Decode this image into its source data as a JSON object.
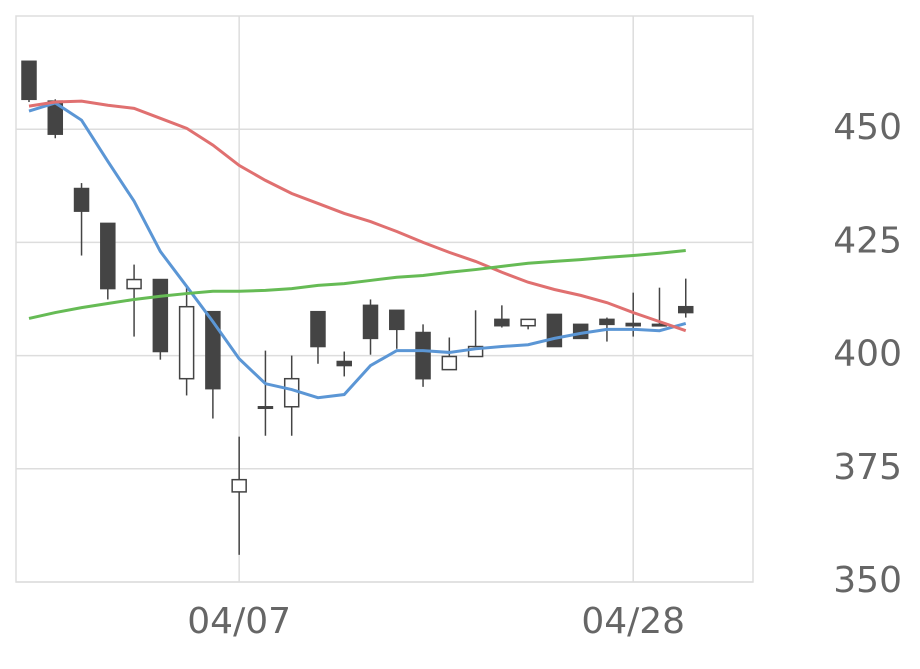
{
  "chart_data": {
    "type": "candlestick",
    "categories": [
      null,
      null,
      null,
      null,
      null,
      null,
      null,
      null,
      "04/07",
      null,
      null,
      null,
      null,
      null,
      null,
      null,
      null,
      null,
      null,
      null,
      null,
      null,
      null,
      "04/28",
      null,
      null
    ],
    "open": [
      465.0,
      456.2,
      436.9,
      429.2,
      414.8,
      416.8,
      394.9,
      409.7,
      369.9,
      388.7,
      388.7,
      409.7,
      398.7,
      411.1,
      410.0,
      405.1,
      396.9,
      399.8,
      408.0,
      406.6,
      409.1,
      406.9,
      408.0,
      407.1,
      406.9,
      410.8
    ],
    "high": [
      465.0,
      456.6,
      438.1,
      429.2,
      420.1,
      416.8,
      415.0,
      409.7,
      382.1,
      401.1,
      400.0,
      409.7,
      400.9,
      412.4,
      410.0,
      406.9,
      404.0,
      410.0,
      411.1,
      408.0,
      409.1,
      406.9,
      408.4,
      413.9,
      415.0,
      417.0
    ],
    "low": [
      456.0,
      448.0,
      422.1,
      412.4,
      404.2,
      399.1,
      391.2,
      386.1,
      356.0,
      382.3,
      382.3,
      398.2,
      395.4,
      400.2,
      401.5,
      393.1,
      396.9,
      399.8,
      406.2,
      405.8,
      402.0,
      403.8,
      403.1,
      404.2,
      406.9,
      408.4
    ],
    "close": [
      456.6,
      448.9,
      431.9,
      414.8,
      416.8,
      400.9,
      410.8,
      392.7,
      372.6,
      388.7,
      394.9,
      402.0,
      397.8,
      403.8,
      405.8,
      394.9,
      399.8,
      402.0,
      406.6,
      408.0,
      402.0,
      403.8,
      406.9,
      406.6,
      406.9,
      409.5
    ],
    "up_color": "#ffffff",
    "down_color": "#444444",
    "series": [
      {
        "color": "#5b96d5",
        "values": [
          454.0,
          455.8,
          452.0,
          442.9,
          434.1,
          423.0,
          415.3,
          407.5,
          399.3,
          393.8,
          392.5,
          390.7,
          391.4,
          397.8,
          401.1,
          401.1,
          400.7,
          401.5,
          402.0,
          402.4,
          403.8,
          404.9,
          405.8,
          405.8,
          405.5,
          407.1
        ]
      },
      {
        "color": "#e07070",
        "values": [
          455.1,
          456.0,
          456.2,
          455.3,
          454.6,
          452.4,
          450.2,
          446.5,
          442.0,
          438.7,
          435.8,
          433.6,
          431.4,
          429.6,
          427.4,
          425.0,
          422.8,
          420.8,
          418.4,
          416.2,
          414.6,
          413.3,
          411.7,
          409.5,
          407.5,
          405.5
        ]
      },
      {
        "color": "#66bb55",
        "values": [
          408.2,
          409.5,
          410.6,
          411.5,
          412.4,
          413.1,
          413.7,
          414.2,
          414.2,
          414.4,
          414.8,
          415.5,
          415.9,
          416.6,
          417.3,
          417.7,
          418.4,
          419.0,
          419.7,
          420.4,
          420.8,
          421.2,
          421.7,
          422.1,
          422.6,
          423.2
        ]
      }
    ],
    "ylim": [
      350,
      475
    ],
    "yticks": [
      350,
      375,
      400,
      425,
      450
    ],
    "grid": true
  }
}
